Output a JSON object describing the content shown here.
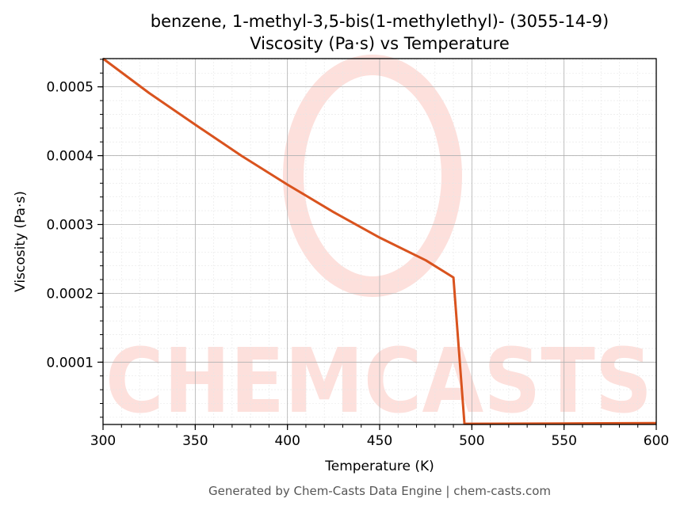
{
  "title_line1": "benzene, 1-methyl-3,5-bis(1-methylethyl)- (3055-14-9)",
  "title_line2": "Viscosity (Pa·s) vs Temperature",
  "footer": "Generated by Chem-Casts Data Engine | chem-casts.com",
  "watermark": "CHEMCASTS",
  "chart_data": {
    "type": "line",
    "title": "benzene, 1-methyl-3,5-bis(1-methylethyl)- (3055-14-9)\nViscosity (Pa·s) vs Temperature",
    "xlabel": "Temperature (K)",
    "ylabel": "Viscosity (Pa·s)",
    "xlim": [
      300,
      600
    ],
    "ylim": [
      9.5e-06,
      0.000541
    ],
    "x_ticks": [
      300,
      350,
      400,
      450,
      500,
      550,
      600
    ],
    "x_tick_labels": [
      "300",
      "350",
      "400",
      "450",
      "500",
      "550",
      "600"
    ],
    "y_ticks": [
      0.0001,
      0.0002,
      0.0003,
      0.0004,
      0.0005
    ],
    "y_tick_labels": [
      "0.0001",
      "0.0002",
      "0.0003",
      "0.0004",
      "0.0005"
    ],
    "grid": true,
    "color": "#d9531e",
    "series": [
      {
        "x": [
          300,
          325,
          350,
          375,
          400,
          425,
          450,
          475,
          490,
          496,
          550,
          600
        ],
        "y": [
          0.000541,
          0.000491,
          0.000445,
          0.0004,
          0.000358,
          0.000318,
          0.000281,
          0.000248,
          0.000223,
          1.05e-05,
          1.1e-05,
          1.15e-05
        ]
      }
    ]
  }
}
